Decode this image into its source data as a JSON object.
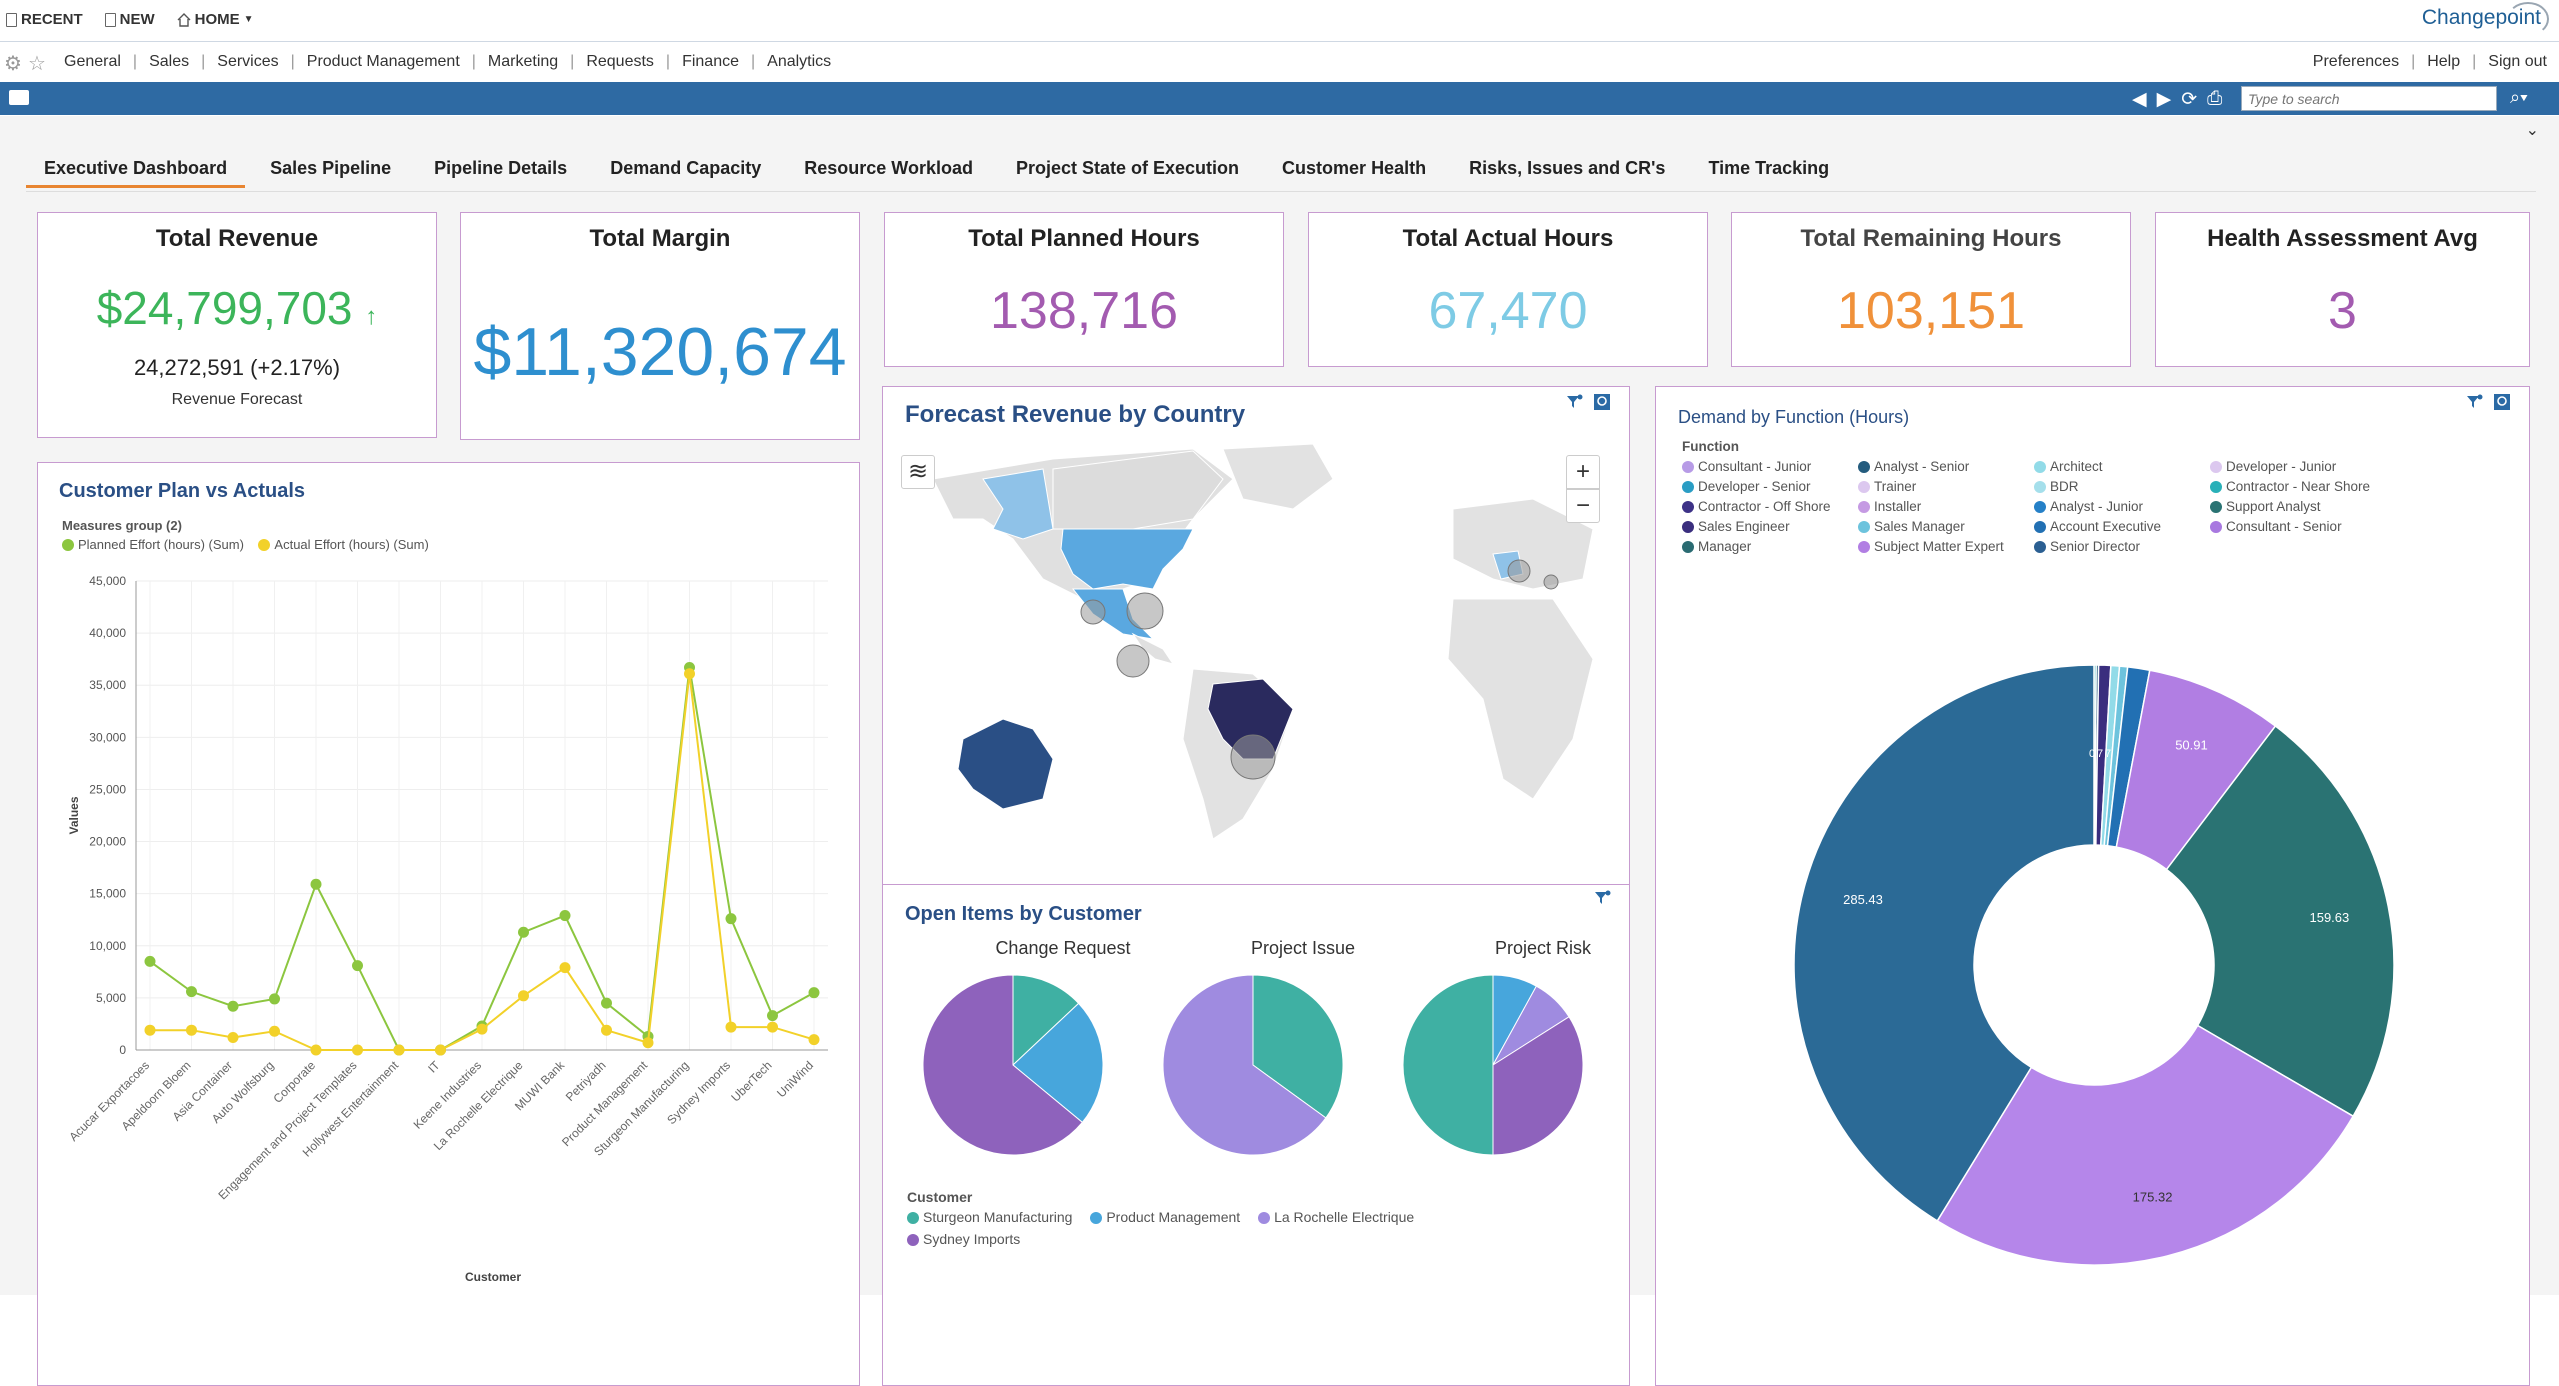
{
  "topnav": {
    "recent": "RECENT",
    "new": "NEW",
    "home": "HOME",
    "brand": "Changepoint"
  },
  "menu": [
    "General",
    "Sales",
    "Services",
    "Product Management",
    "Marketing",
    "Requests",
    "Finance",
    "Analytics"
  ],
  "user_menu": [
    "Preferences",
    "Help",
    "Sign out"
  ],
  "search": {
    "placeholder": "Type to search"
  },
  "tabs": [
    "Executive Dashboard",
    "Sales Pipeline",
    "Pipeline Details",
    "Demand Capacity",
    "Resource Workload",
    "Project State of Execution",
    "Customer Health",
    "Risks, Issues and CR's",
    "Time Tracking"
  ],
  "kpis": {
    "revenue": {
      "title": "Total Revenue",
      "value": "$24,799,703",
      "arrow": "↑",
      "forecast": "24,272,591 (+2.17%)",
      "forecast_label": "Revenue Forecast",
      "color": "#3cb55a"
    },
    "margin": {
      "title": "Total Margin",
      "value": "$11,320,674",
      "color": "#2e8fcf"
    },
    "planned": {
      "title": "Total Planned Hours",
      "value": "138,716",
      "color": "#a35bb0"
    },
    "actual": {
      "title": "Total Actual Hours",
      "value": "67,470",
      "color": "#7ecbe5"
    },
    "remaining": {
      "title": "Total Remaining Hours",
      "value": "103,151",
      "color": "#f0913a"
    },
    "health": {
      "title": "Health Assessment Avg",
      "value": "3",
      "color": "#a35bb0"
    }
  },
  "plan_vs_actuals": {
    "title": "Customer Plan vs Actuals",
    "legend_title": "Measures group (2)",
    "chart_data": {
      "type": "line",
      "title": "Customer Plan vs Actuals",
      "xlabel": "Customer",
      "ylabel": "Values",
      "ylim": [
        0,
        45000
      ],
      "yticks": [
        "0",
        "5,000",
        "10,000",
        "15,000",
        "20,000",
        "25,000",
        "30,000",
        "35,000",
        "40,000",
        "45,000"
      ],
      "categories": [
        "Acucar Exportacoes",
        "Apeldoorn Bloem",
        "Asia Container",
        "Auto Wolfsburg",
        "Corporate",
        "Engagement and Project Templates",
        "Hollywest Entertainment",
        "IT",
        "Keene Industries",
        "La Rochelle Electrique",
        "MUWI Bank",
        "Petriyadh",
        "Product Management",
        "Sturgeon Manufacturing",
        "Sydney Imports",
        "UberTech",
        "UniWind"
      ],
      "series": [
        {
          "name": "Planned Effort (hours) (Sum)",
          "color": "#8cc63f",
          "values": [
            8500,
            5600,
            4200,
            4900,
            15900,
            8100,
            0,
            0,
            2300,
            11300,
            12900,
            4500,
            1300,
            36700,
            12600,
            3300,
            5500
          ]
        },
        {
          "name": "Actual Effort (hours) (Sum)",
          "color": "#f2d129",
          "values": [
            1900,
            1900,
            1200,
            1800,
            0,
            0,
            0,
            0,
            2000,
            5200,
            7900,
            1900,
            700,
            36100,
            2200,
            2200,
            1000
          ]
        }
      ]
    }
  },
  "forecast_map": {
    "title": "Forecast Revenue by Country",
    "zoom_in": "+",
    "zoom_out": "−"
  },
  "open_items": {
    "title": "Open Items by Customer",
    "legend_title": "Customer",
    "chart_data": [
      {
        "type": "pie",
        "title": "Change Request",
        "slices": [
          {
            "name": "Sturgeon Manufacturing",
            "value": 13,
            "color": "#3fb0a3"
          },
          {
            "name": "Product Management",
            "value": 23,
            "color": "#47a6dc"
          },
          {
            "name": "Sydney Imports",
            "value": 64,
            "color": "#8e62bc"
          }
        ]
      },
      {
        "type": "pie",
        "title": "Project Issue",
        "slices": [
          {
            "name": "Sturgeon Manufacturing",
            "value": 35,
            "color": "#3fb0a3"
          },
          {
            "name": "La Rochelle Electrique",
            "value": 65,
            "color": "#9f8be0"
          }
        ]
      },
      {
        "type": "pie",
        "title": "Project Risk",
        "slices": [
          {
            "name": "Product Management",
            "value": 8,
            "color": "#47a6dc"
          },
          {
            "name": "La Rochelle Electrique",
            "value": 8,
            "color": "#9f8be0"
          },
          {
            "name": "Sydney Imports",
            "value": 34,
            "color": "#8e62bc"
          },
          {
            "name": "Sturgeon Manufacturing",
            "value": 50,
            "color": "#3fb0a3"
          }
        ]
      }
    ],
    "legend": [
      {
        "name": "Sturgeon Manufacturing",
        "color": "#3fb0a3"
      },
      {
        "name": "Product Management",
        "color": "#47a6dc"
      },
      {
        "name": "La Rochelle Electrique",
        "color": "#9f8be0"
      },
      {
        "name": "Sydney Imports",
        "color": "#8e62bc"
      }
    ]
  },
  "demand": {
    "title": "Demand by Function (Hours)",
    "legend_title": "Function",
    "legend": [
      {
        "name": "Consultant - Junior",
        "color": "#b79be6"
      },
      {
        "name": "Analyst - Senior",
        "color": "#245c7e"
      },
      {
        "name": "Architect",
        "color": "#92dbe8"
      },
      {
        "name": "Developer - Junior",
        "color": "#dcc8ef"
      },
      {
        "name": "Developer - Senior",
        "color": "#2a9dc4"
      },
      {
        "name": "Trainer",
        "color": "#dcc8ef"
      },
      {
        "name": "BDR",
        "color": "#a5dfeb"
      },
      {
        "name": "Contractor - Near Shore",
        "color": "#29b0b8"
      },
      {
        "name": "Contractor - Off Shore",
        "color": "#3d3287"
      },
      {
        "name": "Installer",
        "color": "#c59ae3"
      },
      {
        "name": "Analyst - Junior",
        "color": "#2580c7"
      },
      {
        "name": "Support Analyst",
        "color": "#2a7373"
      },
      {
        "name": "Sales Engineer",
        "color": "#3a2e7e"
      },
      {
        "name": "Sales Manager",
        "color": "#6dc3dd"
      },
      {
        "name": "Account Executive",
        "color": "#2270b3"
      },
      {
        "name": "Consultant - Senior",
        "color": "#a878e0"
      },
      {
        "name": "Manager",
        "color": "#2a6b72"
      },
      {
        "name": "Subject Matter Expert",
        "color": "#b17ee3"
      },
      {
        "name": "Senior Director",
        "color": "#2b5f92"
      }
    ],
    "chart_data": {
      "type": "pie",
      "title": "Demand by Function (Hours)",
      "slices": [
        {
          "name": "Contractor - Near Shore",
          "value": 0.8,
          "color": "#29b0b8"
        },
        {
          "name": "Analyst - Senior",
          "value": 0.9,
          "color": "#245c7e"
        },
        {
          "name": "Sales Engineer",
          "value": 4.5,
          "color": "#3a2e7e"
        },
        {
          "name": "Architect",
          "value": 3.2,
          "color": "#92dbe8"
        },
        {
          "name": "Sales Manager",
          "value": 3.0,
          "color": "#6dc3dd"
        },
        {
          "name": "Account Executive",
          "value": 8.2,
          "color": "#2270b3"
        },
        {
          "name": "Consultant - Senior",
          "value": 50.91,
          "label": "50.91",
          "color": "#b17ee3"
        },
        {
          "name": "Support Analyst",
          "value": 159.63,
          "label": "159.63",
          "color": "#2a7373"
        },
        {
          "name": "Subject Matter Expert",
          "value": 175.32,
          "label": "175.32",
          "color": "#b586ea"
        },
        {
          "name": "Senior Director",
          "value": 285.43,
          "label": "285.43",
          "color": "#2b6a96"
        }
      ],
      "small_labels": [
        "0",
        "7",
        "7"
      ]
    }
  }
}
